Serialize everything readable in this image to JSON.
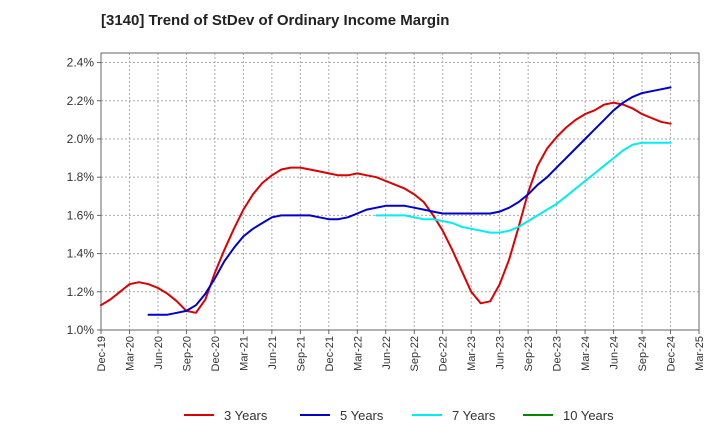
{
  "chart_data": {
    "type": "line",
    "title": "[3140]  Trend of StDev of Ordinary Income Margin",
    "xlabel": "",
    "ylabel": "",
    "x_ticks": [
      "Dec-19",
      "Mar-20",
      "Jun-20",
      "Sep-20",
      "Dec-20",
      "Mar-21",
      "Jun-21",
      "Sep-21",
      "Dec-21",
      "Mar-22",
      "Jun-22",
      "Sep-22",
      "Dec-22",
      "Mar-23",
      "Jun-23",
      "Sep-23",
      "Dec-23",
      "Mar-24",
      "Jun-24",
      "Sep-24",
      "Dec-24",
      "Mar-25"
    ],
    "y_ticks": [
      "1.0%",
      "1.2%",
      "1.4%",
      "1.6%",
      "1.8%",
      "2.0%",
      "2.2%",
      "2.4%"
    ],
    "ylim": [
      1.0,
      2.45
    ],
    "y_unit": "%",
    "grid": true,
    "legend_position": "bottom",
    "series": [
      {
        "name": "3 Years",
        "color": "#dd0000",
        "x": [
          "2019-12",
          "2020-01",
          "2020-02",
          "2020-03",
          "2020-04",
          "2020-05",
          "2020-06",
          "2020-07",
          "2020-08",
          "2020-09",
          "2020-10",
          "2020-11",
          "2020-12",
          "2021-01",
          "2021-02",
          "2021-03",
          "2021-04",
          "2021-05",
          "2021-06",
          "2021-07",
          "2021-08",
          "2021-09",
          "2021-10",
          "2021-11",
          "2021-12",
          "2022-01",
          "2022-02",
          "2022-03",
          "2022-04",
          "2022-05",
          "2022-06",
          "2022-07",
          "2022-08",
          "2022-09",
          "2022-10",
          "2022-11",
          "2022-12",
          "2023-01",
          "2023-02",
          "2023-03",
          "2023-04",
          "2023-05",
          "2023-06",
          "2023-07",
          "2023-08",
          "2023-09",
          "2023-10",
          "2023-11",
          "2023-12",
          "2024-01",
          "2024-02",
          "2024-03",
          "2024-04",
          "2024-05",
          "2024-06",
          "2024-07",
          "2024-08",
          "2024-09",
          "2024-10",
          "2024-11",
          "2024-12"
        ],
        "values": [
          1.13,
          1.16,
          1.2,
          1.24,
          1.25,
          1.24,
          1.22,
          1.19,
          1.15,
          1.1,
          1.09,
          1.16,
          1.3,
          1.42,
          1.53,
          1.63,
          1.71,
          1.77,
          1.81,
          1.84,
          1.85,
          1.85,
          1.84,
          1.83,
          1.82,
          1.81,
          1.81,
          1.82,
          1.81,
          1.8,
          1.78,
          1.76,
          1.74,
          1.71,
          1.67,
          1.6,
          1.52,
          1.42,
          1.31,
          1.2,
          1.14,
          1.15,
          1.24,
          1.37,
          1.54,
          1.72,
          1.86,
          1.95,
          2.01,
          2.06,
          2.1,
          2.13,
          2.15,
          2.18,
          2.19,
          2.18,
          2.16,
          2.13,
          2.11,
          2.09,
          2.08
        ]
      },
      {
        "name": "5 Years",
        "color": "#0000cc",
        "x": [
          "2020-05",
          "2020-06",
          "2020-07",
          "2020-08",
          "2020-09",
          "2020-10",
          "2020-11",
          "2020-12",
          "2021-01",
          "2021-02",
          "2021-03",
          "2021-04",
          "2021-05",
          "2021-06",
          "2021-07",
          "2021-08",
          "2021-09",
          "2021-10",
          "2021-11",
          "2021-12",
          "2022-01",
          "2022-02",
          "2022-03",
          "2022-04",
          "2022-05",
          "2022-06",
          "2022-07",
          "2022-08",
          "2022-09",
          "2022-10",
          "2022-11",
          "2022-12",
          "2023-01",
          "2023-02",
          "2023-03",
          "2023-04",
          "2023-05",
          "2023-06",
          "2023-07",
          "2023-08",
          "2023-09",
          "2023-10",
          "2023-11",
          "2023-12",
          "2024-01",
          "2024-02",
          "2024-03",
          "2024-04",
          "2024-05",
          "2024-06",
          "2024-07",
          "2024-08",
          "2024-09",
          "2024-10",
          "2024-11",
          "2024-12"
        ],
        "values": [
          1.08,
          1.08,
          1.08,
          1.09,
          1.1,
          1.13,
          1.19,
          1.27,
          1.36,
          1.43,
          1.49,
          1.53,
          1.56,
          1.59,
          1.6,
          1.6,
          1.6,
          1.6,
          1.59,
          1.58,
          1.58,
          1.59,
          1.61,
          1.63,
          1.64,
          1.65,
          1.65,
          1.65,
          1.64,
          1.63,
          1.62,
          1.61,
          1.61,
          1.61,
          1.61,
          1.61,
          1.61,
          1.62,
          1.64,
          1.67,
          1.71,
          1.76,
          1.8,
          1.85,
          1.9,
          1.95,
          2.0,
          2.05,
          2.1,
          2.15,
          2.19,
          2.22,
          2.24,
          2.25,
          2.26,
          2.27
        ]
      },
      {
        "name": "7 Years",
        "color": "#00eeee",
        "x": [
          "2022-05",
          "2022-06",
          "2022-07",
          "2022-08",
          "2022-09",
          "2022-10",
          "2022-11",
          "2022-12",
          "2023-01",
          "2023-02",
          "2023-03",
          "2023-04",
          "2023-05",
          "2023-06",
          "2023-07",
          "2023-08",
          "2023-09",
          "2023-10",
          "2023-11",
          "2023-12",
          "2024-01",
          "2024-02",
          "2024-03",
          "2024-04",
          "2024-05",
          "2024-06",
          "2024-07",
          "2024-08",
          "2024-09",
          "2024-10",
          "2024-11",
          "2024-12"
        ],
        "values": [
          1.6,
          1.6,
          1.6,
          1.6,
          1.59,
          1.58,
          1.58,
          1.57,
          1.56,
          1.54,
          1.53,
          1.52,
          1.51,
          1.51,
          1.52,
          1.54,
          1.57,
          1.6,
          1.63,
          1.66,
          1.7,
          1.74,
          1.78,
          1.82,
          1.86,
          1.9,
          1.94,
          1.97,
          1.98,
          1.98,
          1.98,
          1.98
        ]
      },
      {
        "name": "10 Years",
        "color": "#008800",
        "x": [],
        "values": []
      }
    ]
  }
}
